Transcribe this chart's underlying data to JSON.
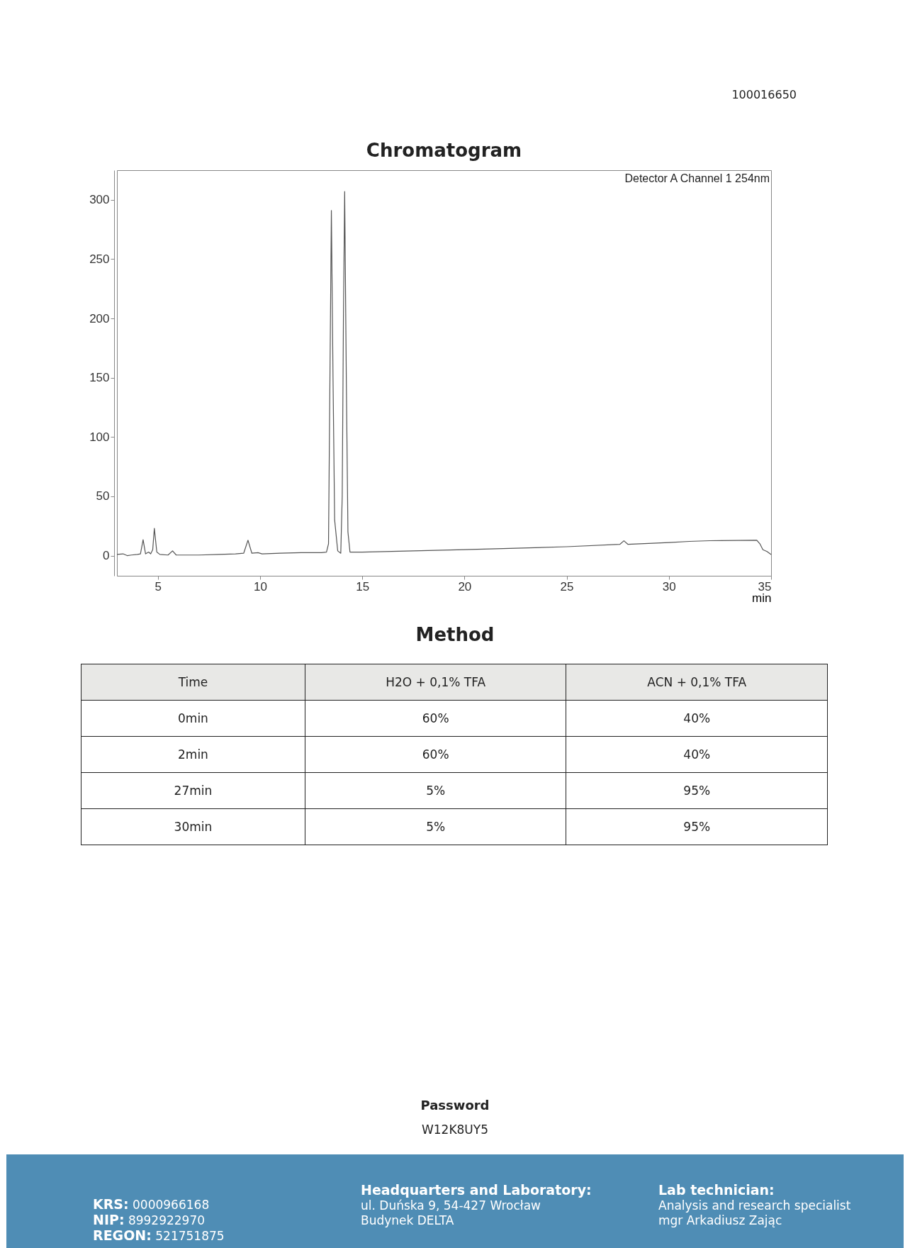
{
  "chart_data": {
    "type": "line",
    "title": "Chromatogram",
    "xlabel": "min",
    "color": "#555555",
    "x": [
      3.0,
      3.3,
      3.5,
      3.7,
      4.0,
      4.15,
      4.28,
      4.4,
      4.55,
      4.65,
      4.75,
      4.83,
      4.95,
      5.1,
      5.5,
      5.72,
      5.9,
      7,
      8,
      8.8,
      9.2,
      9.41,
      9.6,
      9.9,
      10.1,
      11,
      12,
      13,
      13.25,
      13.35,
      13.42,
      13.49,
      13.57,
      13.65,
      13.8,
      13.95,
      14.02,
      14.08,
      14.14,
      14.22,
      14.3,
      14.4,
      15,
      20,
      25,
      27.6,
      27.8,
      28,
      30,
      31,
      32,
      34.3,
      34.45,
      34.6,
      34.8,
      35
    ],
    "values": [
      1,
      1.5,
      0,
      0.5,
      1,
      1.5,
      13.4,
      1.5,
      3,
      1.5,
      5,
      23,
      3,
      1,
      0.5,
      4,
      0.5,
      0.5,
      1,
      1.5,
      2,
      13,
      2,
      2.5,
      1.5,
      2,
      2.5,
      2.5,
      3,
      10,
      150,
      291,
      150,
      30,
      4,
      2,
      50,
      200,
      307,
      150,
      20,
      3,
      3,
      5,
      7.5,
      9.5,
      12.5,
      9.5,
      11,
      12,
      12.6,
      13,
      10,
      5,
      3.5,
      1
    ],
    "xlim": [
      3,
      35
    ],
    "xticks": [
      5,
      10,
      15,
      20,
      25,
      30,
      35
    ],
    "ylim": [
      -17,
      325
    ],
    "yticks": [
      0,
      50,
      100,
      150,
      200,
      250,
      300
    ],
    "annotations": [
      "Detector A Channel 1 254nm",
      "Method",
      "Time",
      "H2O + 0,1% TFA",
      "ACN + 0,1% TFA",
      "0min",
      "60%",
      "40%",
      "2min",
      "60%",
      "40%",
      "27min",
      "5%",
      "95%",
      "30min",
      "5%",
      "95%",
      "100016650",
      "Password",
      "W12K8UY5",
      "KRS: 0000966168",
      "NIP: 8992922970",
      "REGON: 521751875",
      "Headquarters and Laboratory:",
      "ul. Duńska 9, 54-427 Wrocław",
      "Budynek DELTA",
      "Lab technician:",
      "Analysis and research specialist",
      "mgr Arkadiusz Zając"
    ]
  }
}
